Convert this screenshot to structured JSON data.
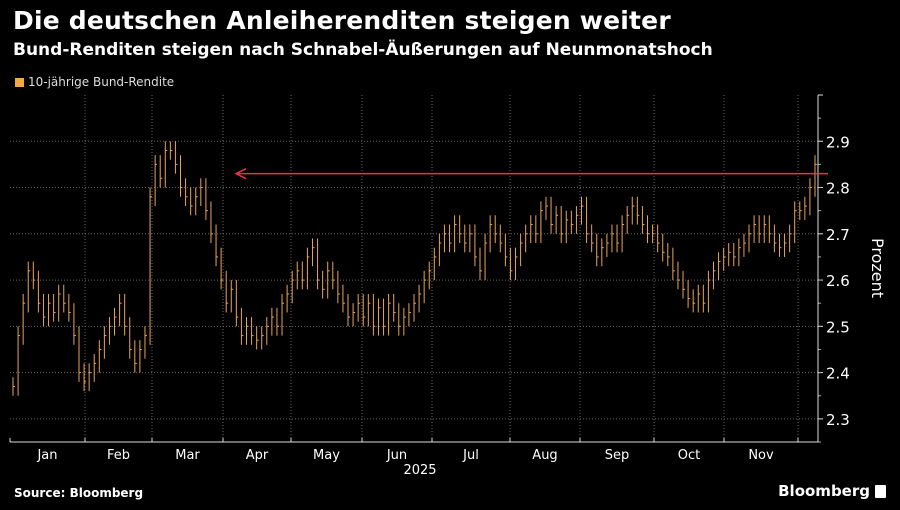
{
  "header": {
    "title": "Die deutschen Anleiherenditen steigen weiter",
    "subtitle": "Bund-Renditen steigen nach Schnabel-Äußerungen auf Neunmonatshoch"
  },
  "footer": {
    "source": "Source: Bloomberg",
    "brand": "Bloomberg"
  },
  "colors": {
    "series": "#e9a45a",
    "annotation": "#e8334f",
    "grid": "#666666"
  },
  "chart_data": {
    "type": "line",
    "title": "Die deutschen Anleiherenditen steigen weiter",
    "legend": [
      "10-jährige Bund-Rendite"
    ],
    "legend_position": "top-left",
    "ylabel": "Prozent",
    "xlabel": "2025",
    "ylim": [
      2.25,
      3.0
    ],
    "yticks": [
      "2.3",
      "2.4",
      "2.5",
      "2.6",
      "2.7",
      "2.8",
      "2.9"
    ],
    "ytick_values": [
      2.3,
      2.4,
      2.5,
      2.6,
      2.7,
      2.8,
      2.9
    ],
    "months": [
      "Jan",
      "Feb",
      "Mar",
      "Apr",
      "May",
      "Jun",
      "Jul",
      "Aug",
      "Sep",
      "Oct",
      "Nov"
    ],
    "year_label": "2025",
    "grid": true,
    "annotation": {
      "type": "arrow",
      "level": 2.83,
      "direction": "left"
    },
    "series": [
      {
        "name": "10-jährige Bund-Rendite",
        "values": [
          2.37,
          2.48,
          2.55,
          2.62,
          2.6,
          2.55,
          2.52,
          2.55,
          2.53,
          2.57,
          2.55,
          2.53,
          2.48,
          2.4,
          2.38,
          2.4,
          2.42,
          2.45,
          2.48,
          2.5,
          2.52,
          2.55,
          2.5,
          2.45,
          2.42,
          2.45,
          2.48,
          2.78,
          2.85,
          2.82,
          2.88,
          2.88,
          2.85,
          2.8,
          2.78,
          2.76,
          2.78,
          2.8,
          2.75,
          2.7,
          2.65,
          2.6,
          2.55,
          2.58,
          2.52,
          2.48,
          2.5,
          2.48,
          2.47,
          2.48,
          2.5,
          2.52,
          2.5,
          2.55,
          2.57,
          2.6,
          2.62,
          2.6,
          2.65,
          2.67,
          2.6,
          2.58,
          2.62,
          2.6,
          2.57,
          2.55,
          2.52,
          2.53,
          2.55,
          2.52,
          2.55,
          2.5,
          2.54,
          2.5,
          2.55,
          2.53,
          2.5,
          2.52,
          2.53,
          2.55,
          2.57,
          2.6,
          2.62,
          2.65,
          2.68,
          2.7,
          2.68,
          2.72,
          2.7,
          2.68,
          2.7,
          2.65,
          2.62,
          2.68,
          2.72,
          2.7,
          2.68,
          2.65,
          2.62,
          2.65,
          2.68,
          2.7,
          2.72,
          2.7,
          2.75,
          2.76,
          2.72,
          2.74,
          2.7,
          2.73,
          2.72,
          2.74,
          2.76,
          2.7,
          2.68,
          2.65,
          2.67,
          2.68,
          2.7,
          2.68,
          2.72,
          2.74,
          2.76,
          2.74,
          2.72,
          2.7,
          2.7,
          2.68,
          2.66,
          2.65,
          2.62,
          2.6,
          2.58,
          2.56,
          2.55,
          2.57,
          2.55,
          2.6,
          2.62,
          2.64,
          2.65,
          2.66,
          2.65,
          2.67,
          2.68,
          2.7,
          2.72,
          2.7,
          2.72,
          2.7,
          2.68,
          2.67,
          2.68,
          2.7,
          2.75,
          2.75,
          2.76,
          2.8,
          2.85
        ]
      }
    ]
  }
}
